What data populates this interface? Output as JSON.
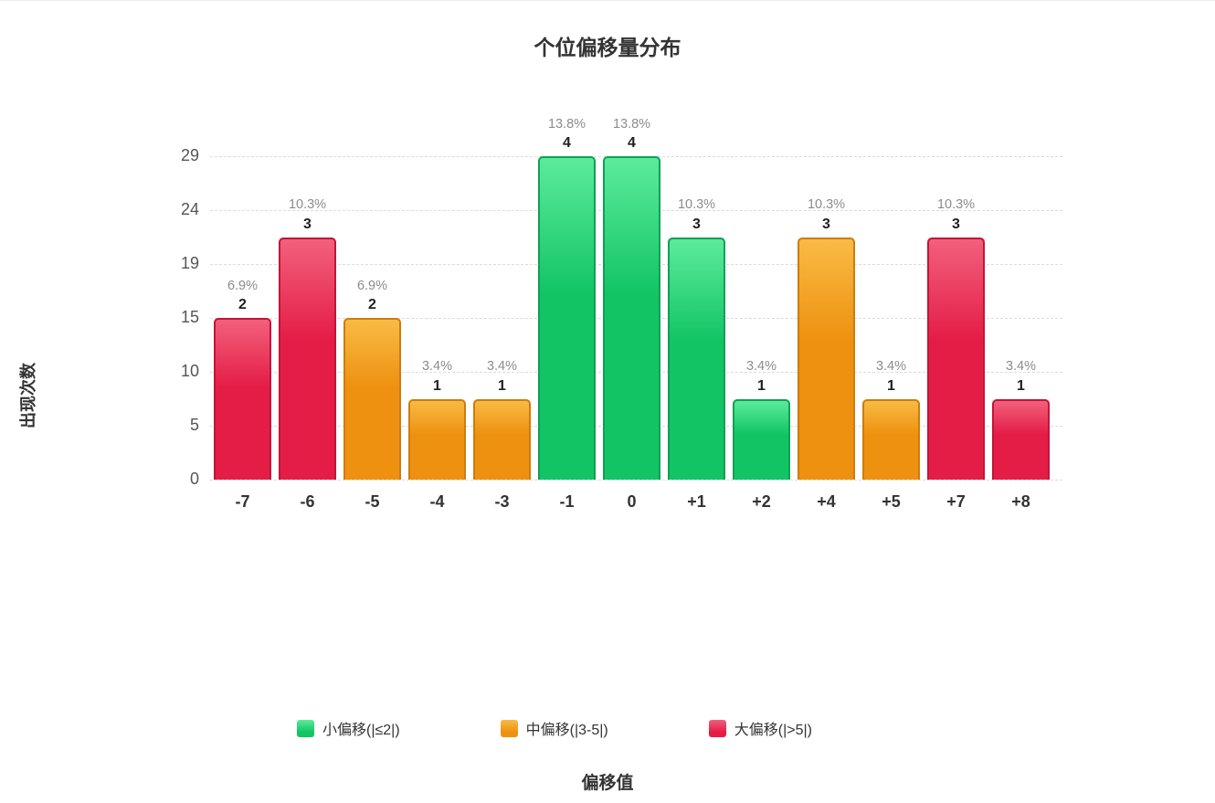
{
  "chart_data": {
    "type": "bar",
    "title": "个位偏移量分布",
    "xlabel": "偏移值",
    "ylabel": "出现次数",
    "ylim": [
      0,
      29
    ],
    "grid": true,
    "legend_position": "bottom",
    "y_ticks": [
      "29",
      "24",
      "19",
      "15",
      "10",
      "5",
      "0"
    ],
    "max_count": 4,
    "categories": [
      "-7",
      "-6",
      "-5",
      "-4",
      "-3",
      "-1",
      "0",
      "+1",
      "+2",
      "+4",
      "+5",
      "+7",
      "+8"
    ],
    "series": [
      {
        "name": "出现次数",
        "values": [
          2,
          3,
          2,
          1,
          1,
          4,
          4,
          3,
          1,
          3,
          1,
          3,
          1
        ]
      }
    ],
    "bar_percents": [
      "6.9%",
      "10.3%",
      "6.9%",
      "3.4%",
      "3.4%",
      "13.8%",
      "13.8%",
      "10.3%",
      "3.4%",
      "10.3%",
      "3.4%",
      "10.3%",
      "3.4%"
    ],
    "bar_groups": [
      "large",
      "large",
      "medium",
      "medium",
      "medium",
      "small",
      "small",
      "small",
      "small",
      "medium",
      "medium",
      "large",
      "large"
    ],
    "group_colors": {
      "small": {
        "top": "#5ceb9b",
        "main": "#13c465",
        "border": "#0da156"
      },
      "medium": {
        "top": "#f8bb45",
        "main": "#ee9110",
        "border": "#cd7c0c"
      },
      "large": {
        "top": "#f2607c",
        "main": "#e41d46",
        "border": "#c11539"
      }
    },
    "legend": [
      {
        "label": "小偏移(|≤2|)",
        "group": "small"
      },
      {
        "label": "中偏移(|3-5|)",
        "group": "medium"
      },
      {
        "label": "大偏移(|>5|)",
        "group": "large"
      }
    ]
  }
}
